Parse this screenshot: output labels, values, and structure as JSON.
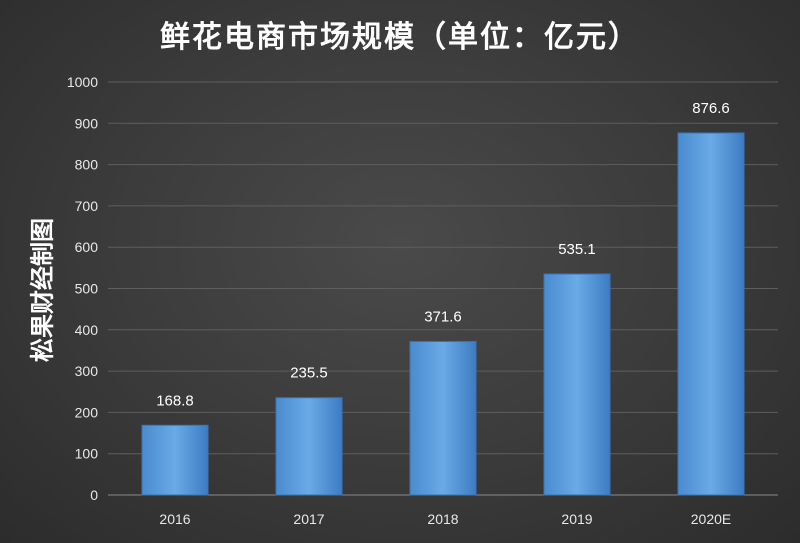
{
  "chart_data": {
    "type": "bar",
    "title": "鲜花电商市场规模（单位：亿元）",
    "categories": [
      "2016",
      "2017",
      "2018",
      "2019",
      "2020E"
    ],
    "values": [
      168.8,
      235.5,
      371.6,
      535.1,
      876.6
    ],
    "data_labels": [
      "168.8",
      "235.5",
      "371.6",
      "535.1",
      "876.6"
    ],
    "y_ticks": [
      "0",
      "100",
      "200",
      "300",
      "400",
      "500",
      "600",
      "700",
      "800",
      "900",
      "1000"
    ],
    "ylim": [
      0,
      1000
    ],
    "grid": true,
    "bar_color": "#5b9bd5"
  },
  "watermark": "松果财经制图"
}
